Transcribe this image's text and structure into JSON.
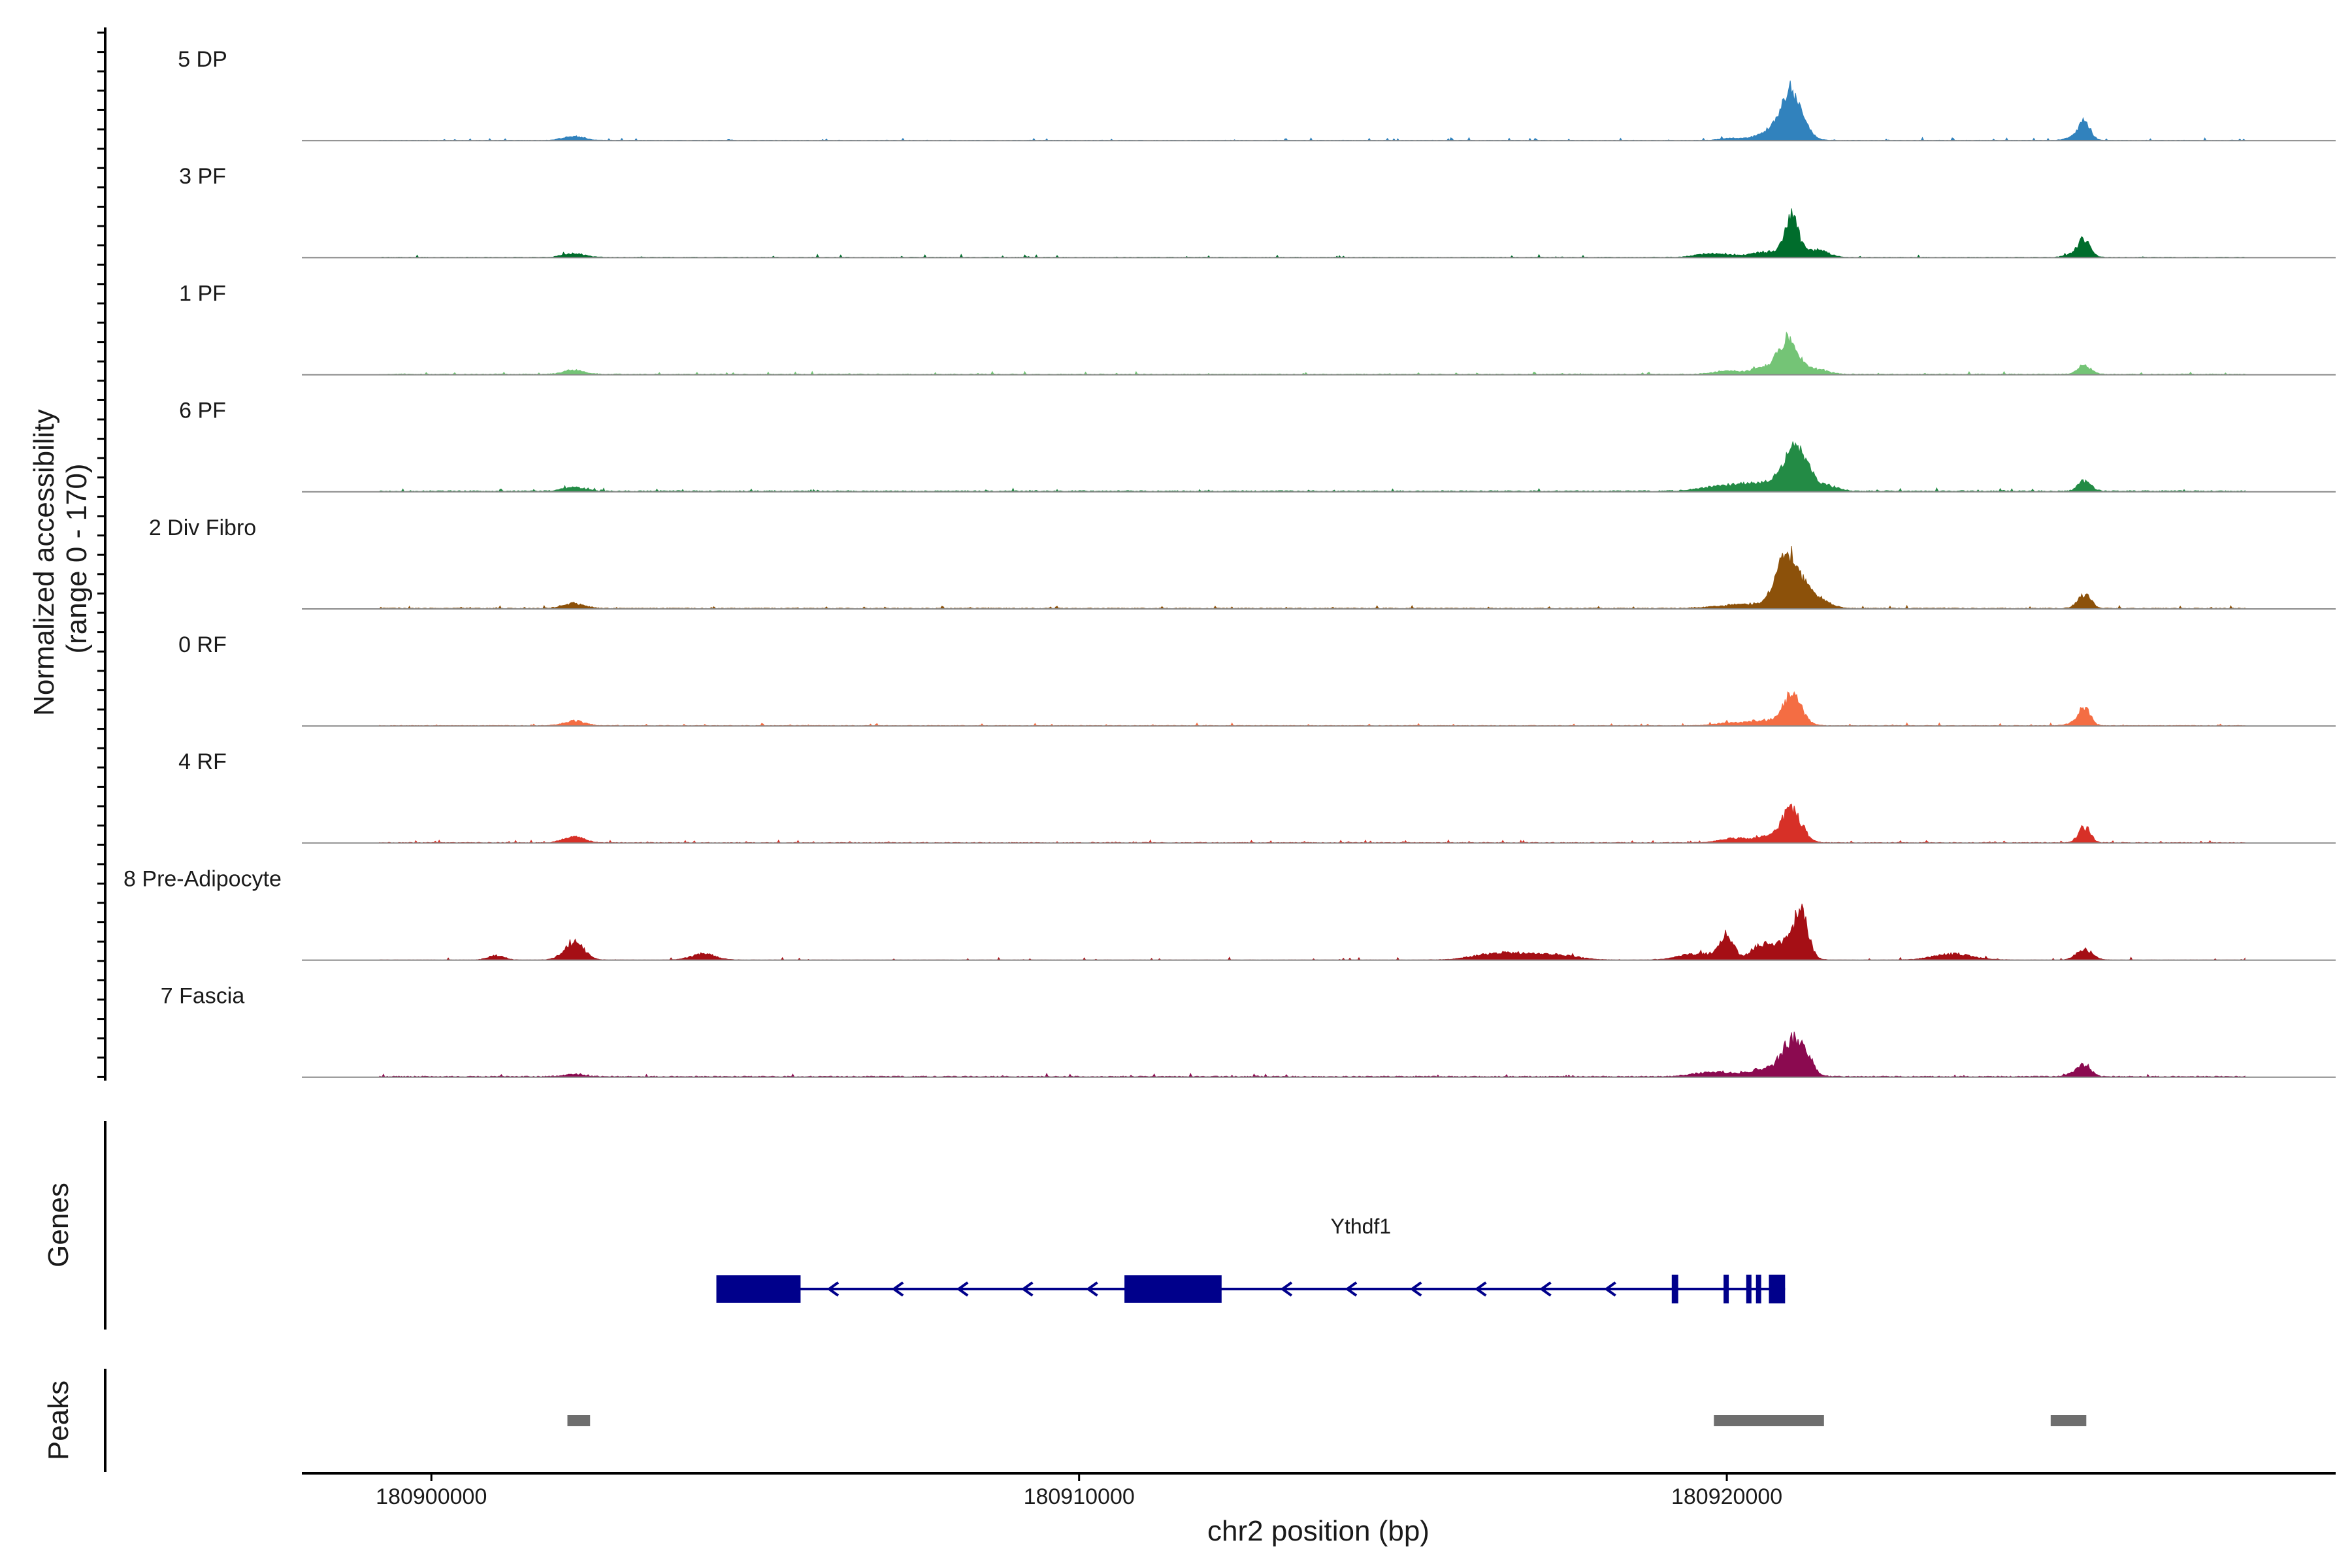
{
  "chart_data": {
    "type": "area",
    "title": "",
    "y_axis_title_line1": "Normalized accessibility",
    "y_axis_title_line2": "(range 0 - 170)",
    "y_range": [
      0,
      170
    ],
    "x_axis_title": "chr2 position (bp)",
    "x_range": [
      180898000,
      180929400
    ],
    "x_ticks": [
      180900000,
      180910000,
      180920000
    ],
    "x_tick_labels": [
      "180900000",
      "180910000",
      "180920000"
    ],
    "tracks": [
      {
        "name": "5 DP",
        "color": "#3182BD",
        "baseline": 0.4,
        "peaks": [
          [
            180902200,
            6,
            160
          ],
          [
            180920050,
            3,
            150
          ],
          [
            180920600,
            7,
            220
          ],
          [
            180920900,
            22,
            200
          ],
          [
            180921000,
            50,
            140
          ],
          [
            180921150,
            10,
            150
          ],
          [
            180925350,
            4,
            120
          ],
          [
            180925520,
            28,
            90
          ]
        ]
      },
      {
        "name": "3 PF",
        "color": "#006D2C",
        "baseline": 0.5,
        "peaks": [
          [
            180902200,
            6,
            160
          ],
          [
            180919800,
            6,
            250
          ],
          [
            180920600,
            8,
            220
          ],
          [
            180921000,
            58,
            110
          ],
          [
            180921400,
            11,
            160
          ],
          [
            180925350,
            5,
            120
          ],
          [
            180925520,
            26,
            90
          ]
        ]
      },
      {
        "name": "1 PF",
        "color": "#74C476",
        "baseline": 0.7,
        "peaks": [
          [
            180902200,
            6,
            160
          ],
          [
            180920000,
            5,
            200
          ],
          [
            180920550,
            9,
            180
          ],
          [
            180920950,
            56,
            150
          ],
          [
            180921400,
            7,
            160
          ],
          [
            180925520,
            14,
            100
          ]
        ]
      },
      {
        "name": "6 PF",
        "color": "#238B45",
        "baseline": 1.0,
        "peaks": [
          [
            180902200,
            6,
            160
          ],
          [
            180920000,
            8,
            350
          ],
          [
            180920700,
            12,
            350
          ],
          [
            180921000,
            44,
            150
          ],
          [
            180921200,
            34,
            120
          ],
          [
            180921550,
            8,
            160
          ],
          [
            180925520,
            15,
            100
          ]
        ]
      },
      {
        "name": "2 Div Fibro",
        "color": "#8C510A",
        "baseline": 0.8,
        "peaks": [
          [
            180902200,
            8,
            160
          ],
          [
            180920300,
            6,
            400
          ],
          [
            180920900,
            52,
            150
          ],
          [
            180921050,
            35,
            220
          ],
          [
            180921400,
            9,
            200
          ],
          [
            180925520,
            20,
            100
          ]
        ]
      },
      {
        "name": "0 RF",
        "color": "#F46D43",
        "baseline": 0.5,
        "peaks": [
          [
            180902200,
            7,
            160
          ],
          [
            180920000,
            4,
            200
          ],
          [
            180920500,
            7,
            200
          ],
          [
            180921000,
            46,
            150
          ],
          [
            180925350,
            3,
            120
          ],
          [
            180925520,
            28,
            90
          ]
        ]
      },
      {
        "name": "4 RF",
        "color": "#D73027",
        "baseline": 0.6,
        "peaks": [
          [
            180902200,
            9,
            160
          ],
          [
            180920100,
            6,
            200
          ],
          [
            180920600,
            8,
            200
          ],
          [
            180921000,
            50,
            150
          ],
          [
            180925520,
            24,
            90
          ]
        ]
      },
      {
        "name": "8 Pre-Adipocyte",
        "color": "#A50F15",
        "baseline": 0.3,
        "peaks": [
          [
            180902200,
            28,
            150
          ],
          [
            180904200,
            10,
            180
          ],
          [
            180901000,
            7,
            120
          ],
          [
            180919600,
            10,
            300
          ],
          [
            180920000,
            36,
            100
          ],
          [
            180920500,
            18,
            150
          ],
          [
            180920900,
            28,
            200
          ],
          [
            180921150,
            60,
            110
          ],
          [
            180923500,
            9,
            300
          ],
          [
            180925520,
            16,
            120
          ],
          [
            180916300,
            7,
            300
          ],
          [
            180916800,
            8,
            300
          ],
          [
            180917400,
            7,
            300
          ]
        ]
      },
      {
        "name": "7 Fascia",
        "color": "#8B0A50",
        "baseline": 0.9,
        "peaks": [
          [
            180902200,
            4,
            160
          ],
          [
            180919800,
            7,
            300
          ],
          [
            180920600,
            11,
            250
          ],
          [
            180921000,
            46,
            160
          ],
          [
            180921200,
            22,
            130
          ],
          [
            180925350,
            4,
            120
          ],
          [
            180925520,
            17,
            100
          ]
        ]
      }
    ],
    "genes_axis_title": "Genes",
    "gene": {
      "name": "Ythdf1",
      "color": "#00008B",
      "start": 180904400,
      "end": 180920900,
      "strand": "-",
      "exons": [
        [
          180904400,
          180905700
        ],
        [
          180910700,
          180912200
        ],
        [
          180919150,
          180919250
        ],
        [
          180919950,
          180920020
        ],
        [
          180920300,
          180920350
        ],
        [
          180920450,
          180920520
        ],
        [
          180920650,
          180920900
        ]
      ]
    },
    "peaks_axis_title": "Peaks",
    "peak_regions": [
      [
        180902100,
        180902450
      ],
      [
        180919800,
        180921500
      ],
      [
        180925000,
        180925550
      ]
    ],
    "peak_color": "#6E6E6E"
  }
}
